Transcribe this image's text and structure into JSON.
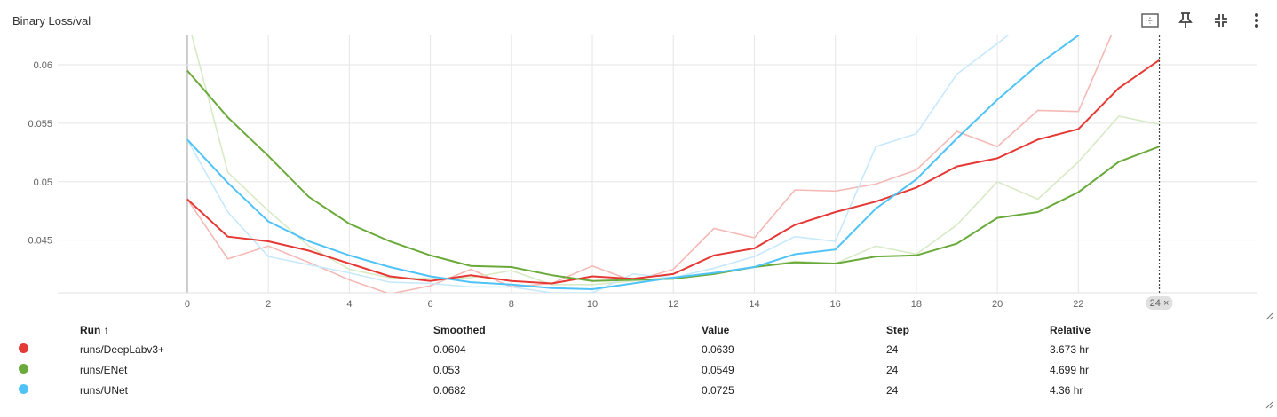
{
  "card": {
    "title": "Binary Loss/val",
    "icons": [
      "fit-domain-icon",
      "pin-icon",
      "collapse-icon",
      "more-vert-icon"
    ],
    "step_marker_label": "24 ×"
  },
  "chart_data": {
    "type": "line",
    "title": "Binary Loss/val",
    "xlabel": "",
    "ylabel": "",
    "xlim": [
      -3.2,
      26.4
    ],
    "ylim": [
      0.0405,
      0.0625
    ],
    "x_ticks": [
      0,
      2,
      4,
      6,
      8,
      10,
      12,
      14,
      16,
      18,
      20,
      22
    ],
    "y_ticks": [
      0.045,
      0.05,
      0.055,
      0.06
    ],
    "y_tick_labels": [
      "0.045",
      "0.05",
      "0.055",
      "0.06"
    ],
    "grid": true,
    "marker_step": 24,
    "series": [
      {
        "name": "runs/DeepLabv3+",
        "color": "#e53935",
        "raw_color": "#f4b9b5",
        "x": [
          0,
          1,
          2,
          3,
          4,
          5,
          6,
          7,
          8,
          9,
          10,
          11,
          12,
          13,
          14,
          15,
          16,
          17,
          18,
          19,
          20,
          21,
          22,
          23,
          24
        ],
        "smoothed": [
          0.0485,
          0.0453,
          0.0449,
          0.0441,
          0.043,
          0.0419,
          0.0415,
          0.042,
          0.0415,
          0.0413,
          0.0419,
          0.0417,
          0.0421,
          0.0437,
          0.0443,
          0.0463,
          0.0474,
          0.0483,
          0.0495,
          0.0513,
          0.052,
          0.0536,
          0.0545,
          0.058,
          0.0604
        ],
        "raw": [
          0.0485,
          0.0434,
          0.0445,
          0.0431,
          0.0416,
          0.0404,
          0.0411,
          0.0425,
          0.041,
          0.0413,
          0.0428,
          0.0415,
          0.0425,
          0.046,
          0.0452,
          0.0493,
          0.0492,
          0.0498,
          0.051,
          0.0543,
          0.053,
          0.0561,
          0.056,
          0.064,
          0.0639
        ]
      },
      {
        "name": "runs/ENet",
        "color": "#6aaa3a",
        "raw_color": "#d8eac6",
        "x": [
          0,
          1,
          2,
          3,
          4,
          5,
          6,
          7,
          8,
          9,
          10,
          11,
          12,
          13,
          14,
          15,
          16,
          17,
          18,
          19,
          20,
          21,
          22,
          23,
          24
        ],
        "smoothed": [
          0.0595,
          0.0555,
          0.0522,
          0.0487,
          0.0464,
          0.0449,
          0.0437,
          0.0428,
          0.0427,
          0.042,
          0.0415,
          0.0416,
          0.0417,
          0.0421,
          0.0427,
          0.0431,
          0.043,
          0.0436,
          0.0437,
          0.0447,
          0.0469,
          0.0474,
          0.0491,
          0.0517,
          0.053
        ],
        "raw": [
          0.064,
          0.0508,
          0.0475,
          0.0445,
          0.0425,
          0.0418,
          0.0417,
          0.0418,
          0.0424,
          0.0412,
          0.0412,
          0.0415,
          0.0418,
          0.0421,
          0.0427,
          0.0432,
          0.043,
          0.0445,
          0.0438,
          0.0463,
          0.05,
          0.0485,
          0.0517,
          0.0556,
          0.0549
        ]
      },
      {
        "name": "runs/UNet",
        "color": "#4fc3f7",
        "raw_color": "#c7e9fb",
        "x": [
          0,
          1,
          2,
          3,
          4,
          5,
          6,
          7,
          8,
          9,
          10,
          11,
          12,
          13,
          14,
          15,
          16,
          17,
          18,
          19,
          20,
          21,
          22,
          23,
          24
        ],
        "smoothed": [
          0.0536,
          0.0499,
          0.0466,
          0.0449,
          0.0437,
          0.0427,
          0.0419,
          0.0414,
          0.0412,
          0.0409,
          0.0408,
          0.0413,
          0.0418,
          0.0422,
          0.0427,
          0.0438,
          0.0442,
          0.0477,
          0.0502,
          0.0537,
          0.057,
          0.06,
          0.0625,
          0.066,
          0.0682
        ],
        "raw": [
          0.0536,
          0.0474,
          0.0436,
          0.0429,
          0.0422,
          0.0414,
          0.0413,
          0.041,
          0.041,
          0.0405,
          0.0405,
          0.0421,
          0.0418,
          0.0426,
          0.0436,
          0.0453,
          0.0449,
          0.053,
          0.0541,
          0.0592,
          0.0618,
          0.0645,
          0.068,
          0.071,
          0.0725
        ]
      }
    ]
  },
  "table": {
    "headers": [
      "Run ↑",
      "Smoothed",
      "Value",
      "Step",
      "Relative"
    ],
    "rows": [
      {
        "color": "#e53935",
        "run": "runs/DeepLabv3+",
        "smoothed": "0.0604",
        "value": "0.0639",
        "step": "24",
        "relative": "3.673 hr"
      },
      {
        "color": "#6aaa3a",
        "run": "runs/ENet",
        "smoothed": "0.053",
        "value": "0.0549",
        "step": "24",
        "relative": "4.699 hr"
      },
      {
        "color": "#4fc3f7",
        "run": "runs/UNet",
        "smoothed": "0.0682",
        "value": "0.0725",
        "step": "24",
        "relative": "4.36 hr"
      }
    ]
  }
}
